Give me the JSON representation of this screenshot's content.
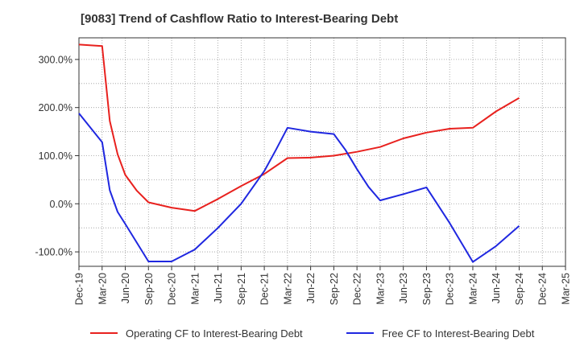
{
  "chart_data": {
    "type": "line",
    "title": "[9083]  Trend of Cashflow Ratio to Interest-Bearing Debt",
    "xlabel": "",
    "ylabel": "",
    "x_ticks": [
      "Dec-19",
      "Mar-20",
      "Jun-20",
      "Sep-20",
      "Dec-20",
      "Mar-21",
      "Jun-21",
      "Sep-21",
      "Dec-21",
      "Mar-22",
      "Jun-22",
      "Sep-22",
      "Dec-22",
      "Mar-23",
      "Jun-23",
      "Sep-23",
      "Dec-23",
      "Mar-24",
      "Jun-24",
      "Sep-24",
      "Dec-24",
      "Mar-25"
    ],
    "x_range": [
      0,
      21
    ],
    "y_ticks": [
      {
        "v": 300,
        "label": "300.0%"
      },
      {
        "v": 200,
        "label": "200.0%"
      },
      {
        "v": 100,
        "label": "100.0%"
      },
      {
        "v": 0,
        "label": "0.0%"
      },
      {
        "v": -100,
        "label": "-100.0%"
      }
    ],
    "ylim": [
      -130,
      345
    ],
    "grid": true,
    "legend_position": "bottom",
    "series": [
      {
        "name": "Operating CF to Interest-Bearing Debt",
        "color": "#e8211e",
        "points": [
          [
            0,
            331
          ],
          [
            1,
            328
          ],
          [
            1.33,
            172
          ],
          [
            1.67,
            103
          ],
          [
            2,
            60
          ],
          [
            2.5,
            27
          ],
          [
            3,
            3
          ],
          [
            4,
            -8
          ],
          [
            5,
            -15
          ],
          [
            6,
            10
          ],
          [
            7,
            37
          ],
          [
            8,
            62
          ],
          [
            9,
            95
          ],
          [
            10,
            96
          ],
          [
            11,
            100
          ],
          [
            12,
            108
          ],
          [
            13,
            118
          ],
          [
            14,
            136
          ],
          [
            15,
            148
          ],
          [
            16,
            156
          ],
          [
            17,
            158
          ],
          [
            18,
            192
          ],
          [
            19,
            220
          ]
        ]
      },
      {
        "name": "Free CF to Interest-Bearing Debt",
        "color": "#1f27e0",
        "points": [
          [
            0,
            188
          ],
          [
            1,
            128
          ],
          [
            1.33,
            28
          ],
          [
            1.67,
            -17
          ],
          [
            2,
            -42
          ],
          [
            3,
            -120
          ],
          [
            4,
            -120
          ],
          [
            5,
            -95
          ],
          [
            6,
            -50
          ],
          [
            7,
            0
          ],
          [
            8,
            68
          ],
          [
            8.5,
            112
          ],
          [
            9,
            158
          ],
          [
            10,
            150
          ],
          [
            11,
            145
          ],
          [
            11.5,
            112
          ],
          [
            12,
            72
          ],
          [
            12.5,
            35
          ],
          [
            13,
            7
          ],
          [
            14,
            20
          ],
          [
            15,
            34
          ],
          [
            16,
            -40
          ],
          [
            17,
            -121
          ],
          [
            18,
            -88
          ],
          [
            19,
            -46
          ]
        ]
      }
    ]
  }
}
